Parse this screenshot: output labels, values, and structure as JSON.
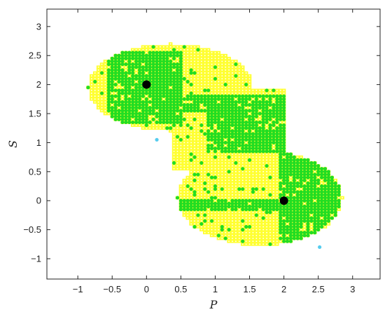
{
  "chart_data": {
    "type": "scatter",
    "xlabel": "P",
    "ylabel": "S",
    "xlim": [
      -1.45,
      3.4
    ],
    "ylim": [
      -1.35,
      3.3
    ],
    "xticks": [
      -1,
      -0.5,
      0,
      0.5,
      1,
      1.5,
      2,
      2.5,
      3
    ],
    "yticks": [
      -1,
      -0.5,
      0,
      0.5,
      1,
      1.5,
      2,
      2.5,
      3
    ],
    "xtick_labels": [
      "−1",
      "−0.5",
      "0",
      "0.5",
      "1",
      "1.5",
      "2",
      "2.5",
      "3"
    ],
    "ytick_labels": [
      "−1",
      "−0.5",
      "0",
      "0.5",
      "1",
      "1.5",
      "2",
      "2.5",
      "3"
    ],
    "grid": false,
    "colors": {
      "region": "#ffff33",
      "grid_dots": "#ffffff",
      "points": "#22dd22",
      "rare_points": "#55ccee",
      "equilibria": "#000000"
    },
    "region": {
      "dx": 0.05,
      "dy": 0.05,
      "description_color_key": "region",
      "upper_lobe": {
        "cx": 0.35,
        "cy": 1.95,
        "rx": 1.2,
        "ry": 0.75
      },
      "lower_lobe": {
        "cx": 1.65,
        "cy": 0.05,
        "rx": 1.2,
        "ry": 0.82
      },
      "bridge": {
        "x0": 0.4,
        "x1": 2.05,
        "y0": 0.55,
        "y1": 1.95
      }
    },
    "green_bands": [
      {
        "x0": -0.55,
        "x1": 0.55,
        "y0": 1.35,
        "y1": 2.55
      },
      {
        "x0": 0.5,
        "x1": 2.3,
        "y0": 1.55,
        "y1": 1.85
      },
      {
        "x0": 0.9,
        "x1": 2.7,
        "y0": 0.85,
        "y1": 1.6
      },
      {
        "x0": 1.95,
        "x1": 2.8,
        "y0": -0.85,
        "y1": 0.95
      },
      {
        "x0": 0.4,
        "x1": 2.2,
        "y0": -0.15,
        "y1": 0.05
      }
    ],
    "rare_points": [
      {
        "x": 0.15,
        "y": 1.05
      },
      {
        "x": 2.52,
        "y": -0.8
      }
    ],
    "equilibria": [
      {
        "x": 0,
        "y": 2
      },
      {
        "x": 2,
        "y": 0
      }
    ]
  }
}
